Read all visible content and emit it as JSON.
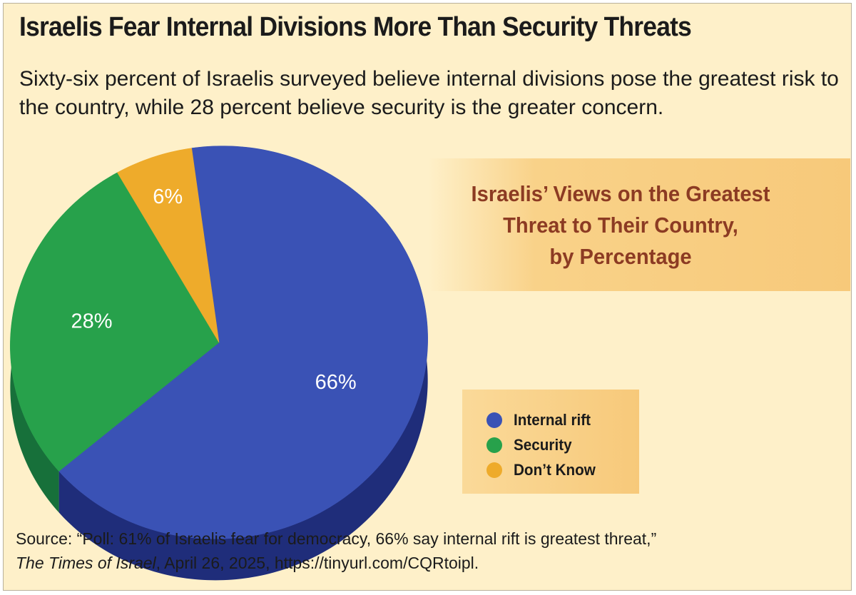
{
  "header": {
    "title": "Israelis Fear Internal Divisions More Than Security Threats",
    "subtitle": "Sixty-six percent of Israelis surveyed believe internal divisions pose the greatest risk to the country, while 28 percent believe security is the greater concern."
  },
  "chart_data": {
    "type": "pie",
    "title_lines": [
      "Israelis’ Views on the Greatest",
      "Threat to Their Country,",
      "by Percentage"
    ],
    "slices": [
      {
        "name": "Internal rift",
        "value": 66,
        "label": "66%",
        "color": "#3a52b5",
        "side_color": "#1f2d7a"
      },
      {
        "name": "Security",
        "value": 28,
        "label": "28%",
        "color": "#27a14b",
        "side_color": "#17703a"
      },
      {
        "name": "Don’t Know",
        "value": 6,
        "label": "6%",
        "color": "#eeab2b",
        "side_color": "#b8801a"
      }
    ]
  },
  "legend": {
    "items": [
      {
        "label": "Internal rift",
        "color": "#3a52b5"
      },
      {
        "label": "Security",
        "color": "#27a14b"
      },
      {
        "label": "Don’t Know",
        "color": "#eeab2b"
      }
    ]
  },
  "source": {
    "prefix": "Source: “Poll: 61% of Israelis fear for democracy, 66% say internal rift is greatest threat,”",
    "publication": "The Times of Israel",
    "suffix": ", April 26, 2025, https://tinyurl.com/CQRtoipl."
  }
}
